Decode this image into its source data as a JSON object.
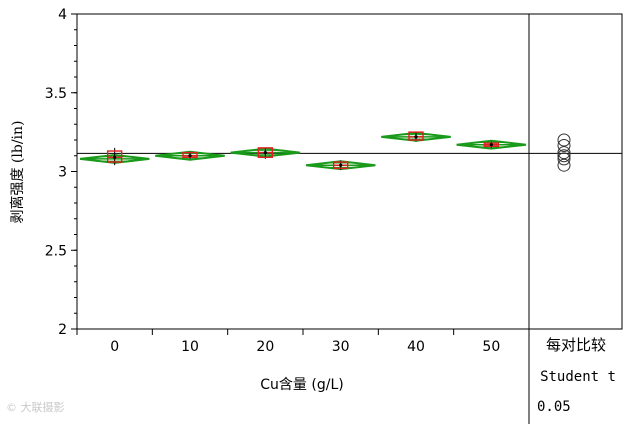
{
  "chart_data": {
    "type": "box",
    "xlabel": "Cu含量 (g/L)",
    "ylabel": "剥离强度 (lb/in)",
    "ylim": [
      2,
      4
    ],
    "yticks": [
      "2",
      "2.5",
      "3",
      "3.5",
      "4"
    ],
    "categories": [
      "0",
      "10",
      "20",
      "30",
      "40",
      "50"
    ],
    "means": [
      3.08,
      3.1,
      3.12,
      3.04,
      3.22,
      3.17
    ],
    "ci_half_width": 0.025,
    "boxes": [
      {
        "q1": 3.06,
        "median": 3.09,
        "q3": 3.13,
        "low": 3.04,
        "high": 3.15
      },
      {
        "q1": 3.09,
        "median": 3.1,
        "q3": 3.12,
        "low": 3.08,
        "high": 3.12
      },
      {
        "q1": 3.09,
        "median": 3.12,
        "q3": 3.15,
        "low": 3.08,
        "high": 3.15
      },
      {
        "q1": 3.02,
        "median": 3.04,
        "q3": 3.06,
        "low": 3.01,
        "high": 3.07
      },
      {
        "q1": 3.2,
        "median": 3.22,
        "q3": 3.25,
        "low": 3.19,
        "high": 3.25
      },
      {
        "q1": 3.16,
        "median": 3.17,
        "q3": 3.18,
        "low": 3.15,
        "high": 3.19
      }
    ],
    "grand_mean": 3.115,
    "comparison_circles": [
      3.2,
      3.165,
      3.12,
      3.1,
      3.08,
      3.04
    ],
    "comparison_title": "每对比较",
    "comparison_method": "Student t",
    "comparison_alpha": "0.05",
    "colors": {
      "diamond": "#1a9a1a",
      "box": "#e02020",
      "line": "#000000"
    }
  },
  "watermark": "© 大联摄影"
}
